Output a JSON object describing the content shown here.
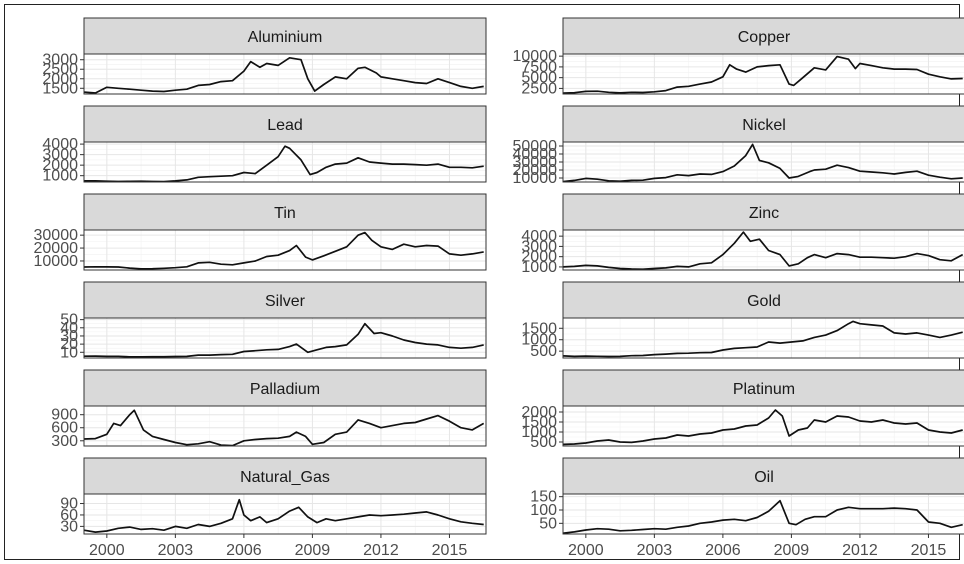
{
  "chart_data": {
    "type": "line",
    "grid": true,
    "x_range": [
      1999,
      2016.6
    ],
    "x_ticks": [
      2000,
      2003,
      2006,
      2009,
      2012,
      2015
    ],
    "panels": [
      {
        "name": "Aluminium",
        "ylim": [
          1200,
          3300
        ],
        "yticks": [
          1500,
          2000,
          2500,
          3000
        ],
        "x": [
          1999.0,
          1999.5,
          2000.0,
          2000.5,
          2001.0,
          2001.5,
          2002.0,
          2002.5,
          2003.0,
          2003.5,
          2004.0,
          2004.5,
          2005.0,
          2005.5,
          2006.0,
          2006.3,
          2006.7,
          2007.0,
          2007.5,
          2008.0,
          2008.5,
          2008.8,
          2009.1,
          2009.5,
          2010.0,
          2010.5,
          2011.0,
          2011.3,
          2011.8,
          2012.0,
          2012.5,
          2013.0,
          2013.5,
          2014.0,
          2014.5,
          2015.0,
          2015.5,
          2016.0,
          2016.5
        ],
        "y": [
          1300,
          1250,
          1550,
          1500,
          1450,
          1400,
          1350,
          1330,
          1400,
          1450,
          1650,
          1700,
          1850,
          1900,
          2400,
          2900,
          2600,
          2800,
          2700,
          3100,
          3000,
          2000,
          1350,
          1700,
          2100,
          2000,
          2550,
          2600,
          2300,
          2100,
          2000,
          1900,
          1800,
          1750,
          2000,
          1800,
          1600,
          1500,
          1600
        ]
      },
      {
        "name": "Copper",
        "ylim": [
          1200,
          10500
        ],
        "yticks": [
          2500,
          5000,
          7500,
          10000
        ],
        "x": [
          1999.0,
          1999.5,
          2000.0,
          2000.5,
          2001.0,
          2001.5,
          2002.0,
          2002.5,
          2003.0,
          2003.5,
          2004.0,
          2004.5,
          2005.0,
          2005.5,
          2006.0,
          2006.3,
          2006.6,
          2007.0,
          2007.5,
          2008.0,
          2008.5,
          2008.9,
          2009.1,
          2009.5,
          2010.0,
          2010.5,
          2011.0,
          2011.5,
          2011.8,
          2012.0,
          2012.5,
          2013.0,
          2013.5,
          2014.0,
          2014.5,
          2015.0,
          2015.5,
          2016.0,
          2016.5
        ],
        "y": [
          1400,
          1500,
          1800,
          1850,
          1600,
          1450,
          1600,
          1550,
          1700,
          2000,
          2800,
          3000,
          3500,
          4000,
          5200,
          8000,
          7000,
          6300,
          7500,
          7800,
          8000,
          3500,
          3200,
          5000,
          7300,
          6800,
          9900,
          9300,
          7100,
          8300,
          7800,
          7300,
          7000,
          7000,
          6900,
          5800,
          5200,
          4700,
          4800
        ]
      },
      {
        "name": "Lead",
        "ylim": [
          400,
          4200
        ],
        "yticks": [
          1000,
          2000,
          3000,
          4000
        ],
        "x": [
          1999.0,
          1999.5,
          2000.0,
          2000.5,
          2001.0,
          2001.5,
          2002.0,
          2002.5,
          2003.0,
          2003.5,
          2004.0,
          2004.5,
          2005.0,
          2005.5,
          2006.0,
          2006.5,
          2007.0,
          2007.5,
          2007.8,
          2008.0,
          2008.5,
          2008.9,
          2009.2,
          2009.6,
          2010.0,
          2010.5,
          2011.0,
          2011.5,
          2012.0,
          2012.5,
          2013.0,
          2013.5,
          2014.0,
          2014.5,
          2015.0,
          2015.5,
          2016.0,
          2016.5
        ],
        "y": [
          500,
          500,
          480,
          450,
          470,
          480,
          450,
          440,
          500,
          600,
          850,
          900,
          950,
          1000,
          1300,
          1200,
          2000,
          2800,
          3800,
          3600,
          2500,
          1100,
          1300,
          1800,
          2100,
          2200,
          2700,
          2300,
          2200,
          2100,
          2100,
          2050,
          2000,
          2100,
          1800,
          1800,
          1750,
          1900
        ]
      },
      {
        "name": "Nickel",
        "ylim": [
          5000,
          55000
        ],
        "yticks": [
          10000,
          20000,
          30000,
          40000,
          50000
        ],
        "x": [
          1999.0,
          1999.5,
          2000.0,
          2000.5,
          2001.0,
          2001.5,
          2002.0,
          2002.5,
          2003.0,
          2003.5,
          2004.0,
          2004.5,
          2005.0,
          2005.5,
          2006.0,
          2006.5,
          2007.0,
          2007.3,
          2007.6,
          2008.0,
          2008.5,
          2008.9,
          2009.3,
          2009.8,
          2010.0,
          2010.5,
          2011.0,
          2011.5,
          2012.0,
          2012.5,
          2013.0,
          2013.5,
          2014.0,
          2014.5,
          2015.0,
          2015.5,
          2016.0,
          2016.5
        ],
        "y": [
          5500,
          7000,
          9500,
          8500,
          6500,
          6000,
          7000,
          7200,
          9500,
          10500,
          14000,
          13000,
          15000,
          14500,
          18000,
          25000,
          38000,
          52000,
          32000,
          29000,
          22000,
          10000,
          12000,
          18000,
          20000,
          21000,
          26000,
          23000,
          18500,
          17500,
          16500,
          15000,
          17000,
          18500,
          13500,
          11000,
          9000,
          10000
        ]
      },
      {
        "name": "Tin",
        "ylim": [
          3000,
          34000
        ],
        "yticks": [
          10000,
          20000,
          30000
        ],
        "x": [
          1999.0,
          1999.5,
          2000.0,
          2000.5,
          2001.0,
          2001.5,
          2002.0,
          2002.5,
          2003.0,
          2003.5,
          2004.0,
          2004.5,
          2005.0,
          2005.5,
          2006.0,
          2006.5,
          2007.0,
          2007.5,
          2008.0,
          2008.3,
          2008.7,
          2009.0,
          2009.5,
          2010.0,
          2010.5,
          2011.0,
          2011.3,
          2011.6,
          2012.0,
          2012.5,
          2013.0,
          2013.5,
          2014.0,
          2014.5,
          2015.0,
          2015.5,
          2016.0,
          2016.5
        ],
        "y": [
          5300,
          5500,
          5400,
          5300,
          4500,
          3900,
          4000,
          4300,
          4800,
          5500,
          8500,
          9000,
          7500,
          7000,
          8500,
          10000,
          13500,
          14500,
          18000,
          22000,
          13000,
          10800,
          14000,
          17500,
          21000,
          30000,
          32000,
          26000,
          21000,
          19000,
          23000,
          21000,
          22000,
          21500,
          15500,
          14500,
          15500,
          17000
        ]
      },
      {
        "name": "Zinc",
        "ylim": [
          700,
          4600
        ],
        "yticks": [
          1000,
          2000,
          3000,
          4000
        ],
        "x": [
          1999.0,
          1999.5,
          2000.0,
          2000.5,
          2001.0,
          2001.5,
          2002.0,
          2002.5,
          2003.0,
          2003.5,
          2004.0,
          2004.5,
          2005.0,
          2005.5,
          2006.0,
          2006.5,
          2006.9,
          2007.2,
          2007.6,
          2008.0,
          2008.5,
          2008.9,
          2009.3,
          2009.7,
          2010.0,
          2010.5,
          2011.0,
          2011.5,
          2012.0,
          2012.5,
          2013.0,
          2013.5,
          2014.0,
          2014.5,
          2015.0,
          2015.5,
          2016.0,
          2016.5
        ],
        "y": [
          1000,
          1050,
          1150,
          1100,
          950,
          850,
          800,
          780,
          850,
          900,
          1050,
          1000,
          1300,
          1400,
          2200,
          3300,
          4400,
          3500,
          3700,
          2600,
          2200,
          1100,
          1300,
          1900,
          2200,
          1900,
          2300,
          2200,
          1950,
          1950,
          1900,
          1850,
          2000,
          2300,
          2100,
          1700,
          1600,
          2200
        ]
      },
      {
        "name": "Silver",
        "ylim": [
          3,
          52
        ],
        "yticks": [
          10,
          20,
          30,
          40,
          50
        ],
        "x": [
          1999.0,
          1999.5,
          2000.0,
          2000.5,
          2001.0,
          2001.5,
          2002.0,
          2002.5,
          2003.0,
          2003.5,
          2004.0,
          2004.5,
          2005.0,
          2005.5,
          2006.0,
          2006.5,
          2007.0,
          2007.5,
          2008.0,
          2008.3,
          2008.8,
          2009.2,
          2009.6,
          2010.0,
          2010.5,
          2011.0,
          2011.3,
          2011.7,
          2012.0,
          2012.5,
          2013.0,
          2013.5,
          2014.0,
          2014.5,
          2015.0,
          2015.5,
          2016.0,
          2016.5
        ],
        "y": [
          5.2,
          5.3,
          5.0,
          5.0,
          4.5,
          4.4,
          4.6,
          4.6,
          4.8,
          5.0,
          6.5,
          6.5,
          7.2,
          7.5,
          11,
          12,
          13,
          13.5,
          17,
          20,
          10,
          13,
          16,
          17,
          19,
          32,
          45,
          33,
          34,
          30,
          25,
          22,
          20,
          19,
          16,
          15,
          16,
          19
        ]
      },
      {
        "name": "Gold",
        "ylim": [
          200,
          1950
        ],
        "yticks": [
          500,
          1000,
          1500
        ],
        "x": [
          1999.0,
          1999.5,
          2000.0,
          2000.5,
          2001.0,
          2001.5,
          2002.0,
          2002.5,
          2003.0,
          2003.5,
          2004.0,
          2004.5,
          2005.0,
          2005.5,
          2006.0,
          2006.5,
          2007.0,
          2007.5,
          2008.0,
          2008.5,
          2009.0,
          2009.5,
          2010.0,
          2010.5,
          2011.0,
          2011.5,
          2011.7,
          2012.0,
          2012.5,
          2013.0,
          2013.5,
          2014.0,
          2014.5,
          2015.0,
          2015.5,
          2016.0,
          2016.5
        ],
        "y": [
          290,
          270,
          285,
          275,
          265,
          270,
          300,
          310,
          350,
          370,
          400,
          410,
          430,
          440,
          550,
          620,
          650,
          680,
          900,
          850,
          900,
          950,
          1100,
          1200,
          1400,
          1700,
          1800,
          1700,
          1650,
          1600,
          1300,
          1250,
          1300,
          1200,
          1100,
          1200,
          1330
        ]
      },
      {
        "name": "Palladium",
        "ylim": [
          180,
          1100
        ],
        "yticks": [
          300,
          600,
          900
        ],
        "x": [
          1999.0,
          1999.5,
          2000.0,
          2000.3,
          2000.6,
          2001.0,
          2001.2,
          2001.6,
          2002.0,
          2002.5,
          2003.0,
          2003.5,
          2004.0,
          2004.5,
          2005.0,
          2005.5,
          2006.0,
          2006.5,
          2007.0,
          2007.5,
          2008.0,
          2008.3,
          2008.7,
          2009.0,
          2009.5,
          2010.0,
          2010.5,
          2011.0,
          2011.5,
          2012.0,
          2012.5,
          2013.0,
          2013.5,
          2014.0,
          2014.5,
          2015.0,
          2015.5,
          2016.0,
          2016.5
        ],
        "y": [
          340,
          350,
          450,
          700,
          650,
          900,
          1000,
          550,
          400,
          330,
          260,
          210,
          230,
          280,
          200,
          190,
          300,
          330,
          350,
          360,
          400,
          500,
          400,
          220,
          260,
          450,
          500,
          780,
          700,
          600,
          650,
          700,
          720,
          800,
          880,
          750,
          600,
          550,
          700
        ]
      },
      {
        "name": "Platinum",
        "ylim": [
          300,
          2300
        ],
        "yticks": [
          500,
          1000,
          1500,
          2000
        ],
        "x": [
          1999.0,
          1999.5,
          2000.0,
          2000.5,
          2001.0,
          2001.5,
          2002.0,
          2002.5,
          2003.0,
          2003.5,
          2004.0,
          2004.5,
          2005.0,
          2005.5,
          2006.0,
          2006.5,
          2007.0,
          2007.5,
          2008.0,
          2008.3,
          2008.6,
          2008.9,
          2009.3,
          2009.7,
          2010.0,
          2010.5,
          2011.0,
          2011.5,
          2012.0,
          2012.5,
          2013.0,
          2013.5,
          2014.0,
          2014.5,
          2015.0,
          2015.5,
          2016.0,
          2016.5
        ],
        "y": [
          380,
          400,
          450,
          550,
          600,
          500,
          480,
          550,
          650,
          700,
          850,
          800,
          900,
          950,
          1100,
          1150,
          1300,
          1350,
          1700,
          2100,
          1800,
          800,
          1100,
          1200,
          1600,
          1500,
          1800,
          1750,
          1550,
          1500,
          1600,
          1450,
          1400,
          1450,
          1100,
          1000,
          950,
          1100
        ]
      },
      {
        "name": "Natural_Gas",
        "ylim": [
          10,
          115
        ],
        "yticks": [
          30,
          60,
          90
        ],
        "x": [
          1999.0,
          1999.5,
          2000.0,
          2000.5,
          2001.0,
          2001.5,
          2002.0,
          2002.5,
          2003.0,
          2003.5,
          2004.0,
          2004.5,
          2005.0,
          2005.5,
          2005.8,
          2006.0,
          2006.3,
          2006.7,
          2007.0,
          2007.5,
          2008.0,
          2008.4,
          2008.8,
          2009.2,
          2009.6,
          2010.0,
          2010.5,
          2011.0,
          2011.5,
          2012.0,
          2012.5,
          2013.0,
          2013.5,
          2014.0,
          2014.5,
          2015.0,
          2015.5,
          2016.0,
          2016.5
        ],
        "y": [
          20,
          15,
          18,
          25,
          28,
          22,
          24,
          20,
          30,
          25,
          35,
          30,
          38,
          50,
          100,
          60,
          45,
          55,
          40,
          50,
          70,
          80,
          55,
          40,
          50,
          45,
          50,
          55,
          60,
          58,
          60,
          62,
          65,
          68,
          60,
          50,
          42,
          38,
          35
        ]
      },
      {
        "name": "Oil",
        "ylim": [
          10,
          160
        ],
        "yticks": [
          50,
          100,
          150
        ],
        "x": [
          1999.0,
          1999.5,
          2000.0,
          2000.5,
          2001.0,
          2001.5,
          2002.0,
          2002.5,
          2003.0,
          2003.5,
          2004.0,
          2004.5,
          2005.0,
          2005.5,
          2006.0,
          2006.5,
          2007.0,
          2007.5,
          2008.0,
          2008.5,
          2008.9,
          2009.2,
          2009.6,
          2010.0,
          2010.5,
          2011.0,
          2011.5,
          2012.0,
          2012.5,
          2013.0,
          2013.5,
          2014.0,
          2014.5,
          2015.0,
          2015.5,
          2016.0,
          2016.5
        ],
        "y": [
          13,
          18,
          25,
          30,
          28,
          22,
          24,
          27,
          30,
          28,
          35,
          40,
          50,
          55,
          62,
          65,
          60,
          72,
          95,
          135,
          50,
          45,
          65,
          75,
          75,
          100,
          110,
          105,
          105,
          105,
          107,
          105,
          100,
          55,
          50,
          35,
          45
        ]
      }
    ]
  }
}
